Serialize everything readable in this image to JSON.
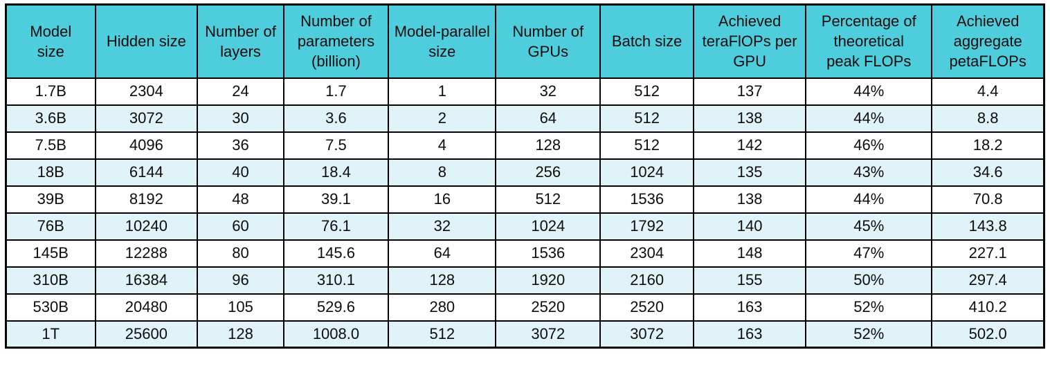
{
  "chart_data": {
    "type": "table",
    "columns": [
      "Model\nsize",
      "Hidden size",
      "Number of\nlayers",
      "Number of\nparameters\n(billion)",
      "Model-parallel\nsize",
      "Number of\nGPUs",
      "Batch size",
      "Achieved\nteraFlOPs per\nGPU",
      "Percentage of\ntheoretical\npeak FLOPs",
      "Achieved\naggregate\npetaFLOPs"
    ],
    "column_names_plain": [
      "Model size",
      "Hidden size",
      "Number of layers",
      "Number of parameters (billion)",
      "Model-parallel size",
      "Number of GPUs",
      "Batch size",
      "Achieved teraFlOPs per GPU",
      "Percentage of theoretical peak FLOPs",
      "Achieved aggregate petaFLOPs"
    ],
    "rows": [
      [
        "1.7B",
        "2304",
        "24",
        "1.7",
        "1",
        "32",
        "512",
        "137",
        "44%",
        "4.4"
      ],
      [
        "3.6B",
        "3072",
        "30",
        "3.6",
        "2",
        "64",
        "512",
        "138",
        "44%",
        "8.8"
      ],
      [
        "7.5B",
        "4096",
        "36",
        "7.5",
        "4",
        "128",
        "512",
        "142",
        "46%",
        "18.2"
      ],
      [
        "18B",
        "6144",
        "40",
        "18.4",
        "8",
        "256",
        "1024",
        "135",
        "43%",
        "34.6"
      ],
      [
        "39B",
        "8192",
        "48",
        "39.1",
        "16",
        "512",
        "1536",
        "138",
        "44%",
        "70.8"
      ],
      [
        "76B",
        "10240",
        "60",
        "76.1",
        "32",
        "1024",
        "1792",
        "140",
        "45%",
        "143.8"
      ],
      [
        "145B",
        "12288",
        "80",
        "145.6",
        "64",
        "1536",
        "2304",
        "148",
        "47%",
        "227.1"
      ],
      [
        "310B",
        "16384",
        "96",
        "310.1",
        "128",
        "1920",
        "2160",
        "155",
        "50%",
        "297.4"
      ],
      [
        "530B",
        "20480",
        "105",
        "529.6",
        "280",
        "2520",
        "2520",
        "163",
        "52%",
        "410.2"
      ],
      [
        "1T",
        "25600",
        "128",
        "1008.0",
        "512",
        "3072",
        "3072",
        "163",
        "52%",
        "502.0"
      ]
    ],
    "layout": {
      "grid": "on",
      "alternating_rows": true
    },
    "colors": {
      "header_bg": "#4ECEDD",
      "row_bg": "#FFFFFF",
      "row_alt_bg": "#DFF3F8",
      "border": "#000000",
      "text": "#0C0C0C"
    }
  }
}
